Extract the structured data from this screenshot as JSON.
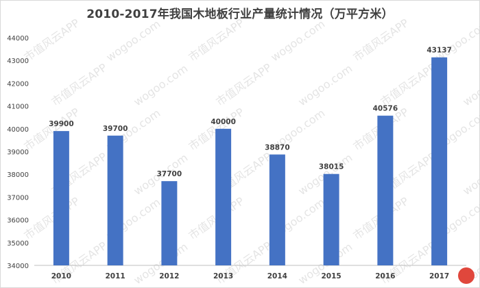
{
  "chart_data": {
    "type": "bar",
    "title": "2010-2017年我国木地板行业产量统计情况（万平方米）",
    "categories": [
      "2010",
      "2011",
      "2012",
      "2013",
      "2014",
      "2015",
      "2016",
      "2017"
    ],
    "values": [
      39900,
      39700,
      37700,
      40000,
      38870,
      38015,
      40576,
      43137
    ],
    "ylim": [
      34000,
      44000
    ],
    "yticks": [
      34000,
      35000,
      36000,
      37000,
      38000,
      39000,
      40000,
      41000,
      42000,
      43000,
      44000
    ],
    "xlabel": "",
    "ylabel": "",
    "grid": false,
    "bar_color": "#4472C4",
    "data_labels": true
  },
  "watermark": {
    "texts": [
      "市值风云APP",
      "wogoo.com"
    ]
  },
  "logo": {
    "icon": "fengyun-logo-icon",
    "color": "#e0473c"
  }
}
